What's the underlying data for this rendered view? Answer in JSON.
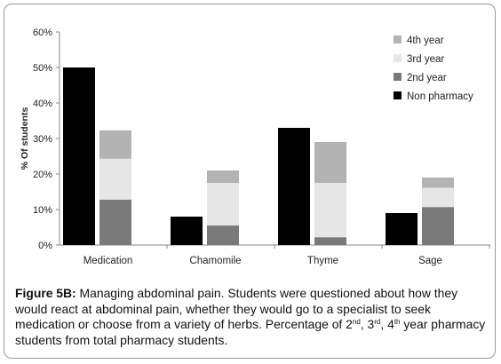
{
  "chart_data": {
    "type": "bar",
    "stacked_series_note": null,
    "categories": [
      "Medication",
      "Chamomile",
      "Thyme",
      "Sage"
    ],
    "ylabel": "% Of students",
    "yticks": [
      "0%",
      "10%",
      "20%",
      "30%",
      "40%",
      "50%",
      "60%"
    ],
    "ylim": [
      0,
      60
    ],
    "non_pharmacy": {
      "name": "Non pharmacy",
      "color": "#000000",
      "values": [
        50,
        8,
        33,
        9
      ]
    },
    "stacked": [
      {
        "name": "2nd year",
        "color": "#7a7a7a",
        "values": [
          12.8,
          5.5,
          2.2,
          10.7
        ]
      },
      {
        "name": "3rd year",
        "color": "#e6e6e6",
        "values": [
          11.5,
          12.0,
          15.3,
          5.4
        ]
      },
      {
        "name": "4th year",
        "color": "#b3b3b3",
        "values": [
          8.0,
          3.5,
          11.5,
          2.9
        ]
      }
    ],
    "legend_order": [
      "4th year",
      "3rd year",
      "2nd year",
      "Non pharmacy"
    ],
    "legend_position": "top-right",
    "grid": false
  },
  "caption": {
    "label": "Figure 5B:",
    "line1": "Managing abdominal pain. Students were questioned about how",
    "line2": "they would react at abdominal pain, whether they would go to a specialist to",
    "line3": "seek medication or choose from a variety of herbs. Percentage of 2",
    "sup_nd": "nd",
    "sep1": ", 3",
    "sup_rd": "rd",
    "sep2": ", 4",
    "sup_th": "th",
    "line4": "year pharmacy students from total pharmacy students."
  }
}
